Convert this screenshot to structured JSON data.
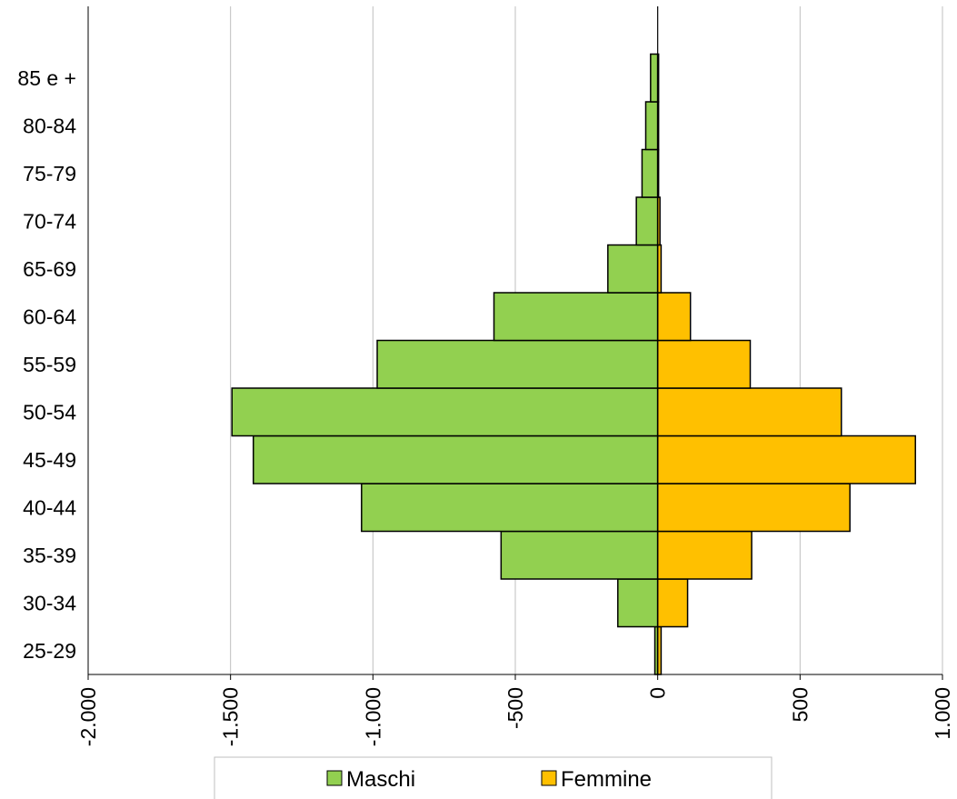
{
  "chart_data": {
    "type": "bar",
    "orientation": "horizontal",
    "subtype": "population-pyramid",
    "categories": [
      "25-29",
      "30-34",
      "35-39",
      "40-44",
      "45-49",
      "50-54",
      "55-59",
      "60-64",
      "65-69",
      "70-74",
      "75-79",
      "80-84",
      "85 e +"
    ],
    "series": [
      {
        "name": "Maschi",
        "color": "#92D050",
        "values": [
          -10,
          -140,
          -550,
          -1040,
          -1420,
          -1495,
          -985,
          -575,
          -175,
          -75,
          -55,
          -42,
          -25
        ]
      },
      {
        "name": "Femmine",
        "color": "#FFC000",
        "values": [
          12,
          105,
          330,
          675,
          905,
          645,
          325,
          115,
          12,
          8,
          3,
          3,
          3
        ]
      }
    ],
    "x_ticks": [
      -2000,
      -1500,
      -1000,
      -500,
      0,
      500,
      1000
    ],
    "x_tick_labels": [
      "-2.000",
      "-1.500",
      "-1.000",
      "-500",
      "0",
      "500",
      "1.000"
    ],
    "xlim": [
      -2000,
      1000
    ],
    "xlabel": "",
    "ylabel": "",
    "title": "",
    "grid": "vertical",
    "legend_position": "bottom"
  }
}
